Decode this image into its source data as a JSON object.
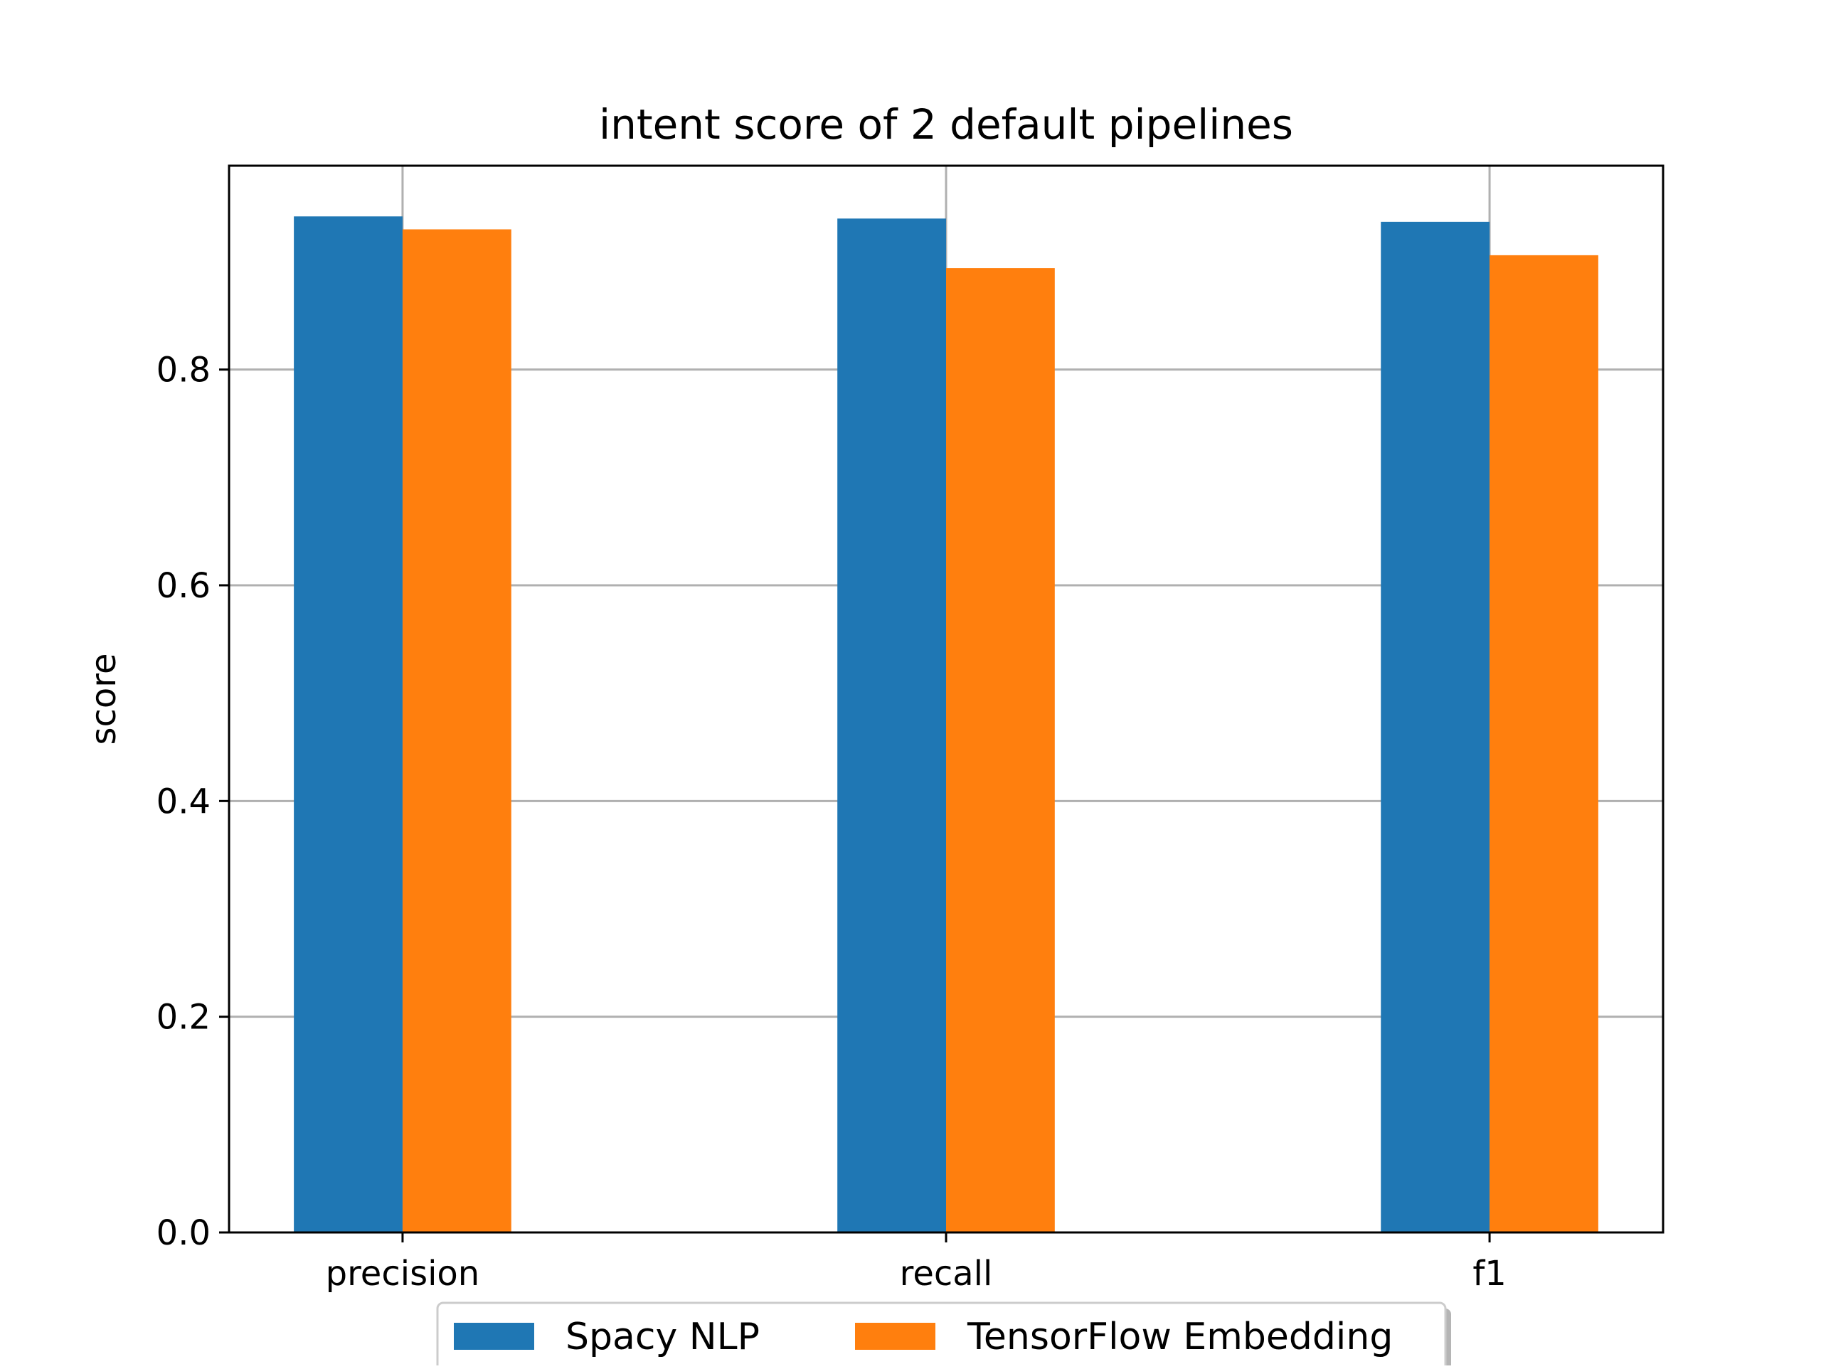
{
  "chart_data": {
    "type": "bar",
    "title": "intent score of 2 default pipelines",
    "xlabel": "",
    "ylabel": "score",
    "categories": [
      "precision",
      "recall",
      "f1"
    ],
    "series": [
      {
        "name": "Spacy NLP",
        "color": "#1f77b4",
        "values": [
          0.942,
          0.94,
          0.937
        ]
      },
      {
        "name": "TensorFlow Embedding",
        "color": "#ff7f0e",
        "values": [
          0.93,
          0.894,
          0.906
        ]
      }
    ],
    "ylim": [
      0,
      0.989
    ],
    "yticks": [
      "0.0",
      "0.2",
      "0.4",
      "0.6",
      "0.8"
    ],
    "grid": true,
    "legend_position": "bottom-center"
  }
}
